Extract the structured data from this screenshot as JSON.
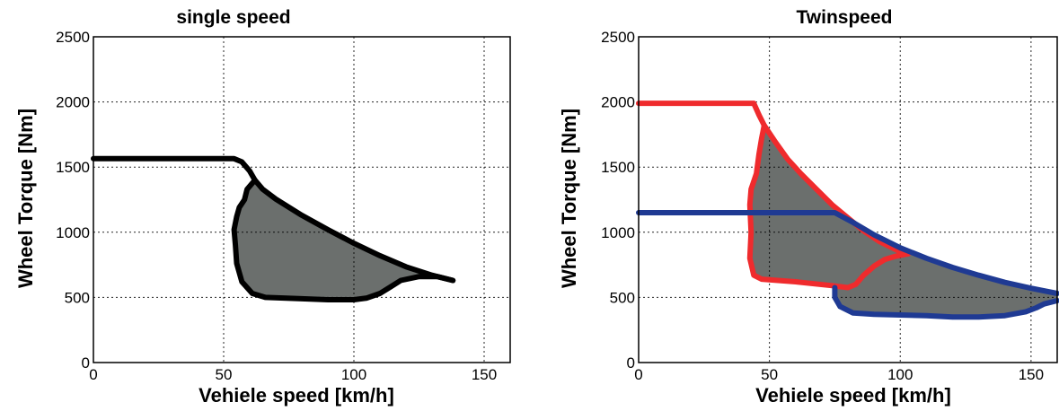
{
  "chart_data": [
    {
      "type": "line",
      "title": "single speed",
      "xlabel": "Vehiele speed [km/h]",
      "ylabel": "Wheel Torque [Nm]",
      "xlim": [
        0,
        160
      ],
      "ylim": [
        0,
        2500
      ],
      "xticks": [
        0,
        50,
        100,
        150
      ],
      "yticks": [
        0,
        500,
        1000,
        1500,
        2000,
        2500
      ],
      "grid": true,
      "region_fill": "#6b6f6d",
      "series": [
        {
          "color": "#000000",
          "points": [
            [
              0,
              1565
            ],
            [
              54,
              1565
            ],
            [
              57,
              1540
            ],
            [
              60,
              1470
            ],
            [
              62,
              1400
            ],
            [
              65,
              1330
            ],
            [
              70,
              1255
            ],
            [
              80,
              1130
            ],
            [
              90,
              1020
            ],
            [
              100,
              915
            ],
            [
              110,
              820
            ],
            [
              120,
              735
            ],
            [
              130,
              670
            ],
            [
              138,
              630
            ]
          ]
        },
        {
          "color": "#000000",
          "points": [
            [
              62,
              1400
            ],
            [
              59,
              1330
            ],
            [
              58,
              1250
            ],
            [
              56,
              1190
            ],
            [
              55,
              1120
            ],
            [
              54,
              1020
            ],
            [
              54.5,
              900
            ],
            [
              55,
              760
            ],
            [
              57,
              620
            ],
            [
              61,
              530
            ],
            [
              66,
              500
            ],
            [
              80,
              490
            ],
            [
              90,
              482
            ],
            [
              100,
              482
            ],
            [
              105,
              495
            ],
            [
              110,
              530
            ],
            [
              114,
              580
            ],
            [
              118,
              630
            ],
            [
              125,
              660
            ],
            [
              132,
              660
            ],
            [
              138,
              630
            ]
          ]
        }
      ]
    },
    {
      "type": "line",
      "title": "Twinspeed",
      "xlabel": "Vehiele speed [km/h]",
      "ylabel": "Wheel Torque [Nm]",
      "xlim": [
        0,
        160
      ],
      "ylim": [
        0,
        2500
      ],
      "xticks": [
        0,
        50,
        100,
        150
      ],
      "yticks": [
        0,
        500,
        1000,
        1500,
        2000,
        2500
      ],
      "grid": true,
      "region_fill": "#6b6f6d",
      "series": [
        {
          "color": "#ef2b2d",
          "points": [
            [
              0,
              1990
            ],
            [
              44,
              1990
            ],
            [
              46,
              1900
            ],
            [
              48,
              1820
            ],
            [
              52,
              1700
            ],
            [
              57,
              1560
            ],
            [
              62,
              1450
            ],
            [
              68,
              1330
            ],
            [
              74,
              1210
            ],
            [
              80,
              1110
            ],
            [
              86,
              1010
            ],
            [
              92,
              930
            ],
            [
              99,
              860
            ],
            [
              103,
              835
            ]
          ]
        },
        {
          "color": "#ef2b2d",
          "points": [
            [
              48,
              1820
            ],
            [
              47,
              1720
            ],
            [
              46,
              1600
            ],
            [
              45,
              1450
            ],
            [
              43,
              1330
            ],
            [
              42.5,
              1210
            ],
            [
              43,
              1000
            ],
            [
              42.5,
              800
            ],
            [
              44,
              670
            ],
            [
              47,
              640
            ],
            [
              60,
              620
            ],
            [
              74,
              590
            ],
            [
              80,
              575
            ],
            [
              83,
              600
            ],
            [
              86,
              670
            ],
            [
              90,
              740
            ],
            [
              94,
              790
            ],
            [
              98,
              815
            ],
            [
              103,
              835
            ]
          ]
        },
        {
          "color": "#1f3a93",
          "points": [
            [
              0,
              1150
            ],
            [
              75,
              1150
            ],
            [
              82,
              1075
            ],
            [
              90,
              980
            ],
            [
              100,
              880
            ],
            [
              110,
              800
            ],
            [
              120,
              730
            ],
            [
              130,
              670
            ],
            [
              140,
              615
            ],
            [
              150,
              570
            ],
            [
              160,
              530
            ]
          ]
        },
        {
          "color": "#1f3a93",
          "points": [
            [
              75,
              575
            ],
            [
              75,
              500
            ],
            [
              77,
              430
            ],
            [
              82,
              380
            ],
            [
              90,
              370
            ],
            [
              100,
              365
            ],
            [
              110,
              360
            ],
            [
              120,
              350
            ],
            [
              130,
              350
            ],
            [
              140,
              360
            ],
            [
              148,
              390
            ],
            [
              152,
              420
            ],
            [
              155,
              450
            ],
            [
              160,
              475
            ]
          ]
        }
      ]
    }
  ]
}
